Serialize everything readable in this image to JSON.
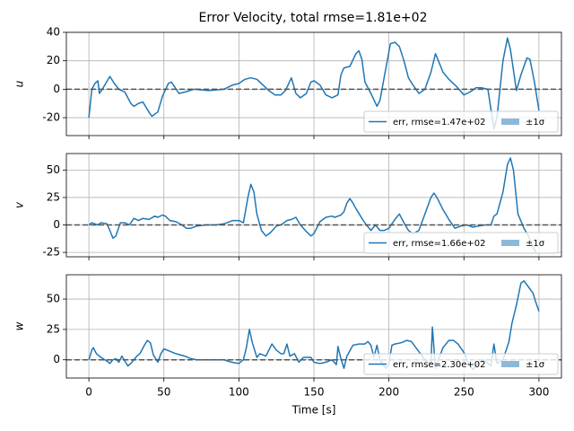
{
  "title": "Error Velocity, total rmse=1.81e+02",
  "chart_data": [
    {
      "type": "line",
      "ylabel": "u",
      "ylim": [
        -32.6,
        40
      ],
      "yticks": [
        -20,
        0,
        20,
        40
      ],
      "xlim": [
        -15,
        315
      ],
      "xticks": [
        0,
        50,
        100,
        150,
        200,
        250,
        300
      ],
      "grid": true,
      "reference_line": 0,
      "legend": "lower right",
      "band_label": "±1σ",
      "band_color": "#8db9d8",
      "x": [
        0,
        2,
        4,
        6,
        7,
        9,
        14,
        17,
        20,
        24,
        28,
        30,
        33,
        36,
        40,
        42,
        46,
        49,
        53,
        55,
        57,
        60,
        64,
        70,
        80,
        90,
        96,
        100,
        104,
        108,
        112,
        116,
        120,
        124,
        128,
        131,
        135,
        138,
        141,
        145,
        148,
        150,
        154,
        158,
        162,
        166,
        168,
        170,
        174,
        178,
        180,
        182,
        184,
        188,
        192,
        194,
        198,
        201,
        204,
        207,
        210,
        213,
        216,
        220,
        224,
        228,
        231,
        233,
        236,
        240,
        245,
        250,
        254,
        258,
        262,
        266,
        270,
        272,
        276,
        279,
        281,
        285,
        288,
        292,
        294,
        297,
        300
      ],
      "series": [
        {
          "name": "err, rmse=1.47e+02",
          "color": "#1f77b4",
          "values": [
            -20,
            0,
            4,
            6,
            -3,
            0,
            9,
            4,
            0,
            -2,
            -10,
            -12,
            -10,
            -9,
            -16,
            -19,
            -16,
            -5,
            4,
            5,
            2,
            -3,
            -2,
            0,
            -1,
            0,
            3,
            4,
            7,
            8,
            7,
            3,
            -1,
            -4,
            -4,
            -1,
            8,
            -3,
            -6,
            -3,
            5,
            6,
            3,
            -4,
            -6,
            -4,
            10,
            15,
            16,
            25,
            27,
            21,
            5,
            -3,
            -12,
            -8,
            15,
            32,
            33,
            30,
            20,
            8,
            3,
            -3,
            0,
            12,
            25,
            20,
            12,
            7,
            2,
            -4,
            -2,
            1,
            1,
            0,
            -28,
            -20,
            20,
            36,
            28,
            -1,
            10,
            22,
            21,
            5,
            -15
          ]
        }
      ]
    },
    {
      "type": "line",
      "ylabel": "v",
      "ylim": [
        -29,
        65
      ],
      "yticks": [
        -25,
        0,
        25,
        50
      ],
      "xlim": [
        -15,
        315
      ],
      "xticks": [
        0,
        50,
        100,
        150,
        200,
        250,
        300
      ],
      "grid": true,
      "reference_line": 0,
      "legend": "lower right",
      "band_label": "±1σ",
      "band_color": "#8db9d8",
      "x": [
        0,
        2,
        4,
        6,
        8,
        12,
        14,
        16,
        18,
        21,
        24,
        27,
        30,
        33,
        36,
        40,
        44,
        46,
        49,
        51,
        54,
        58,
        62,
        65,
        68,
        72,
        78,
        85,
        90,
        96,
        100,
        103,
        106,
        108,
        110,
        112,
        115,
        118,
        121,
        125,
        128,
        132,
        135,
        138,
        141,
        145,
        148,
        150,
        154,
        158,
        162,
        164,
        166,
        168,
        170,
        172,
        174,
        176,
        178,
        182,
        185,
        188,
        191,
        194,
        197,
        200,
        204,
        207,
        210,
        213,
        216,
        220,
        224,
        228,
        230,
        232,
        236,
        240,
        244,
        248,
        252,
        256,
        260,
        264,
        268,
        270,
        272,
        276,
        279,
        281,
        283,
        286,
        290,
        293,
        296,
        298
      ],
      "series": [
        {
          "name": "err, rmse=1.66e+02",
          "color": "#1f77b4",
          "values": [
            0,
            2,
            1,
            0,
            2,
            1,
            -5,
            -12,
            -10,
            2,
            2,
            0,
            6,
            4,
            6,
            5,
            8,
            7,
            9,
            8,
            4,
            3,
            0,
            -3,
            -3,
            -1,
            0,
            0,
            1,
            4,
            4,
            2,
            25,
            37,
            30,
            10,
            -5,
            -10,
            -7,
            -1,
            0,
            4,
            5,
            7,
            0,
            -6,
            -10,
            -8,
            3,
            7,
            8,
            7,
            8,
            9,
            12,
            20,
            24,
            20,
            15,
            6,
            0,
            -5,
            0,
            -5,
            -5,
            -3,
            5,
            10,
            2,
            -5,
            -8,
            -5,
            10,
            25,
            29,
            25,
            14,
            5,
            -3,
            -1,
            0,
            -2,
            -1,
            0,
            0,
            8,
            10,
            30,
            55,
            61,
            50,
            10,
            -3,
            -10,
            -20,
            -25
          ]
        }
      ]
    },
    {
      "type": "line",
      "ylabel": "w",
      "xlabel": "Time [s]",
      "ylim": [
        -15,
        70
      ],
      "yticks": [
        0,
        25,
        50
      ],
      "xlim": [
        -15,
        315
      ],
      "xticks": [
        0,
        50,
        100,
        150,
        200,
        250,
        300
      ],
      "grid": true,
      "reference_line": 0,
      "legend": "lower right",
      "band_label": "±1σ",
      "band_color": "#8db9d8",
      "x": [
        0,
        2,
        3,
        5,
        8,
        12,
        14,
        16,
        18,
        20,
        22,
        24,
        26,
        28,
        32,
        34,
        37,
        39,
        41,
        43,
        46,
        48,
        50,
        54,
        58,
        64,
        68,
        72,
        80,
        90,
        95,
        100,
        103,
        105,
        107,
        109,
        112,
        114,
        118,
        122,
        125,
        128,
        130,
        132,
        134,
        137,
        140,
        143,
        148,
        150,
        154,
        158,
        162,
        165,
        166,
        168,
        170,
        172,
        176,
        180,
        184,
        186,
        188,
        190,
        192,
        194,
        198,
        200,
        202,
        204,
        208,
        212,
        215,
        218,
        221,
        224,
        228,
        229,
        231,
        233,
        236,
        240,
        243,
        246,
        250,
        253,
        256,
        260,
        263,
        268,
        270,
        272,
        276,
        280,
        282,
        285,
        288,
        290,
        293,
        296,
        298,
        300
      ],
      "series": [
        {
          "name": "err, rmse=2.30e+02",
          "color": "#1f77b4",
          "values": [
            0,
            8,
            10,
            5,
            2,
            -1,
            -3,
            0,
            1,
            -2,
            3,
            -1,
            -5,
            -3,
            3,
            5,
            12,
            16,
            14,
            4,
            -2,
            5,
            9,
            7,
            5,
            3,
            1,
            0,
            0,
            0,
            -2,
            -3,
            0,
            10,
            25,
            14,
            2,
            5,
            3,
            13,
            8,
            5,
            5,
            13,
            3,
            5,
            -2,
            2,
            2,
            -2,
            -3,
            -2,
            0,
            -4,
            11,
            1,
            -7,
            3,
            12,
            13,
            13,
            15,
            12,
            2,
            12,
            0,
            -7,
            -3,
            12,
            13,
            14,
            16,
            15,
            10,
            5,
            0,
            -3,
            27,
            -7,
            0,
            10,
            16,
            16,
            13,
            6,
            -3,
            -8,
            -2,
            0,
            -5,
            13,
            -3,
            0,
            15,
            30,
            45,
            63,
            65,
            60,
            55,
            47,
            40
          ]
        }
      ]
    }
  ]
}
